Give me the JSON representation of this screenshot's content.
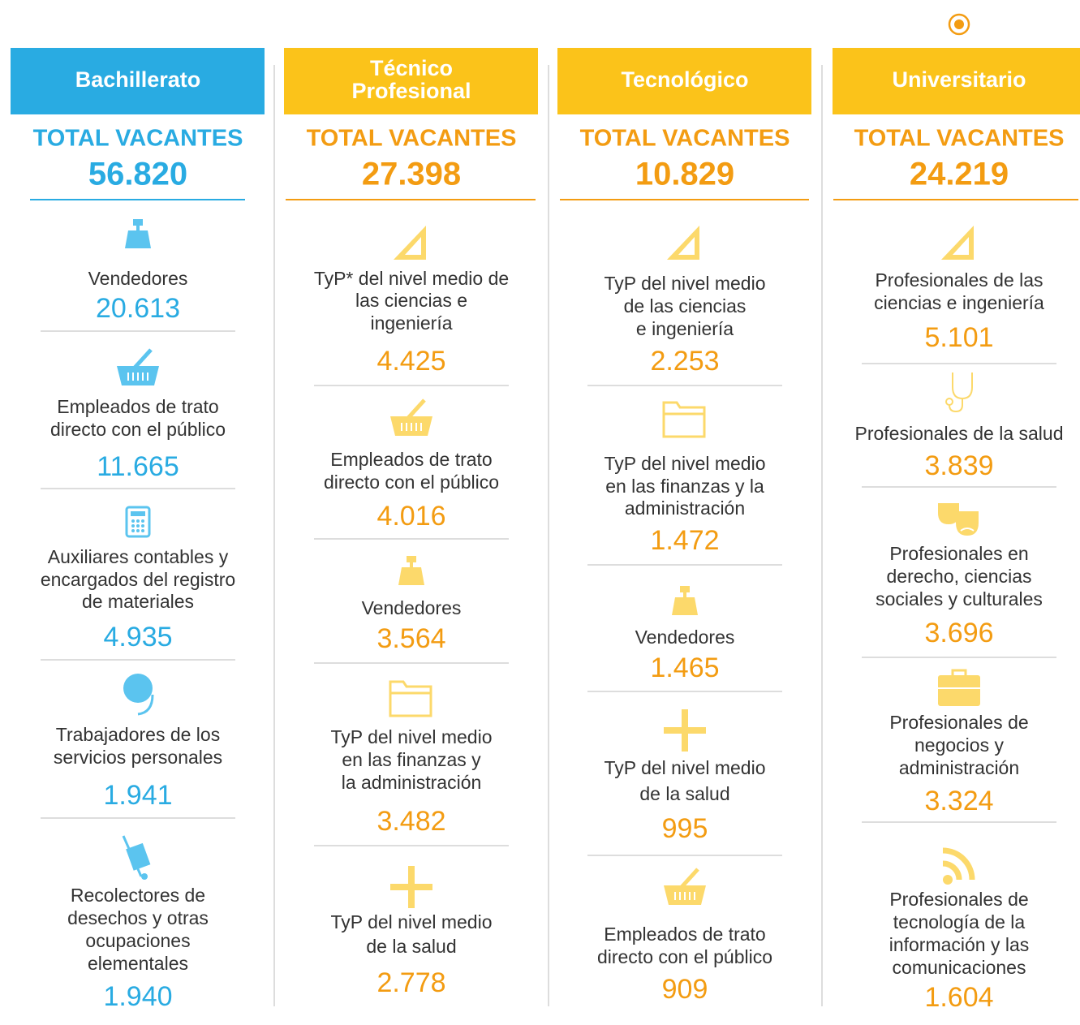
{
  "columns": [
    {
      "header": [
        "Bachillerato"
      ],
      "total_label": "TOTAL VACANTES",
      "total": "56.820",
      "items": [
        {
          "label": [
            "Vendedores"
          ],
          "number": "20.613"
        },
        {
          "label": [
            "Empleados de trato",
            "directo con el público"
          ],
          "number": "11.665"
        },
        {
          "label": [
            "Auxiliares contables y",
            "encargados del registro",
            "de materiales"
          ],
          "number": "4.935"
        },
        {
          "label": [
            "Trabajadores de los",
            "servicios personales"
          ],
          "number": "1.941"
        },
        {
          "label": [
            "Recolectores de",
            "desechos y otras",
            "ocupaciones",
            "elementales"
          ],
          "number": "1.940"
        }
      ]
    },
    {
      "header": [
        "Técnico",
        "Profesional"
      ],
      "total_label": "TOTAL VACANTES",
      "total": "27.398",
      "items": [
        {
          "label": [
            "TyP* del nivel medio de",
            "las ciencias e",
            "ingeniería"
          ],
          "number": "4.425"
        },
        {
          "label": [
            "Empleados de trato",
            "directo con el público"
          ],
          "number": "4.016"
        },
        {
          "label": [
            "Vendedores"
          ],
          "number": "3.564"
        },
        {
          "label": [
            "TyP del nivel medio",
            "en las finanzas y",
            "la administración"
          ],
          "number": "3.482"
        },
        {
          "label": [
            "TyP del nivel medio",
            "de la salud"
          ],
          "number": "2.778"
        }
      ]
    },
    {
      "header": [
        "Tecnológico"
      ],
      "total_label": "TOTAL VACANTES",
      "total": "10.829",
      "items": [
        {
          "label": [
            "TyP del nivel medio",
            "de las ciencias",
            "e ingeniería"
          ],
          "number": "2.253"
        },
        {
          "label": [
            "TyP del nivel medio",
            "en las finanzas y la",
            "administración"
          ],
          "number": "1.472"
        },
        {
          "label": [
            "Vendedores"
          ],
          "number": "1.465"
        },
        {
          "label": [
            "TyP del nivel medio",
            "de la salud"
          ],
          "number": "995"
        },
        {
          "label": [
            "Empleados de trato",
            "directo con el público"
          ],
          "number": "909"
        }
      ]
    },
    {
      "header": [
        "Universitario"
      ],
      "total_label": "TOTAL VACANTES",
      "total": "24.219",
      "items": [
        {
          "label": [
            "Profesionales de las",
            "ciencias e ingeniería"
          ],
          "number": "5.101"
        },
        {
          "label": [
            "Profesionales de la salud"
          ],
          "number": "3.839"
        },
        {
          "label": [
            "Profesionales  en",
            "derecho, ciencias",
            "sociales y culturales"
          ],
          "number": "3.696"
        },
        {
          "label": [
            "Profesionales de",
            "negocios y",
            "administración"
          ],
          "number": "3.324"
        },
        {
          "label": [
            "Profesionales de",
            "tecnología de la",
            "información y las",
            "comunicaciones"
          ],
          "number": "1.604"
        }
      ]
    }
  ]
}
